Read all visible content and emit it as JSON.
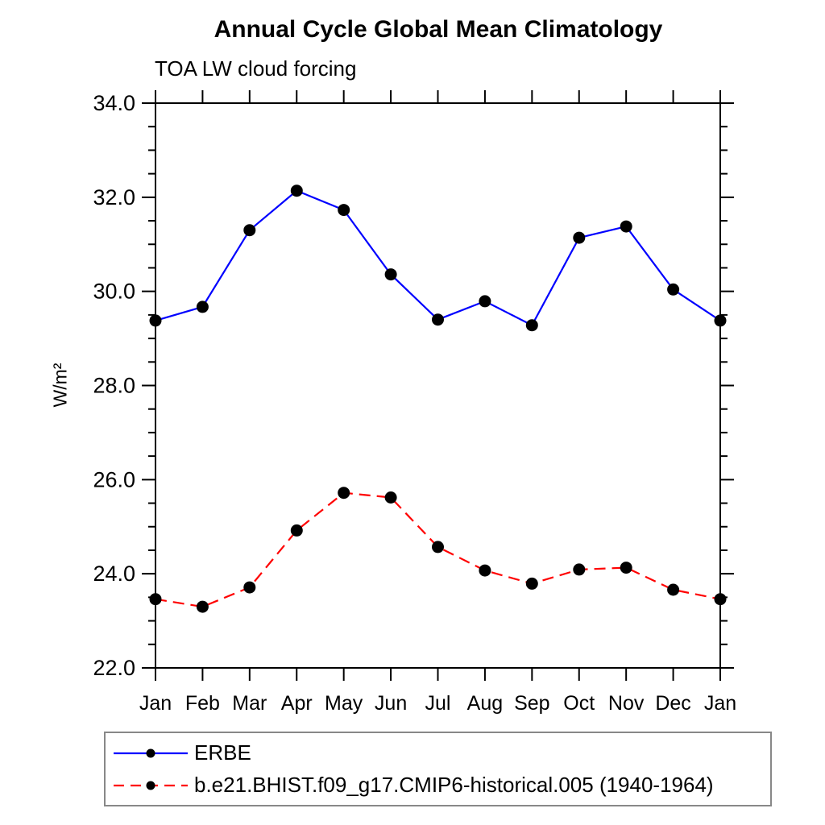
{
  "header": {
    "title": "Annual Cycle Global Mean Climatology",
    "subtitle": "TOA LW cloud forcing"
  },
  "chart_data": {
    "type": "line",
    "x_categories": [
      "Jan",
      "Feb",
      "Mar",
      "Apr",
      "May",
      "Jun",
      "Jul",
      "Aug",
      "Sep",
      "Oct",
      "Nov",
      "Dec",
      "Jan"
    ],
    "ylabel": "W/m²",
    "ylim": [
      22.0,
      34.0
    ],
    "ytick_step": 2.0,
    "yminor_step": 0.5,
    "ytick_labels": [
      "22.0",
      "24.0",
      "26.0",
      "28.0",
      "30.0",
      "32.0",
      "34.0"
    ],
    "grid": false,
    "legend_position": "bottom-left",
    "axis_color": "#000000",
    "marker": "filled-circle",
    "series": [
      {
        "name": "ERBE",
        "color": "#0000ff",
        "style": "solid",
        "marker_color": "#000000",
        "values": [
          29.38,
          29.67,
          31.3,
          32.14,
          31.73,
          30.36,
          29.4,
          29.79,
          29.28,
          31.14,
          31.38,
          30.04,
          29.38
        ]
      },
      {
        "name": "b.e21.BHIST.f09_g17.CMIP6-historical.005 (1940-1964)",
        "color": "#ff0000",
        "style": "dashed",
        "marker_color": "#000000",
        "values": [
          23.46,
          23.3,
          23.71,
          24.92,
          25.72,
          25.62,
          24.57,
          24.07,
          23.79,
          24.09,
          24.13,
          23.66,
          23.46
        ]
      }
    ]
  }
}
